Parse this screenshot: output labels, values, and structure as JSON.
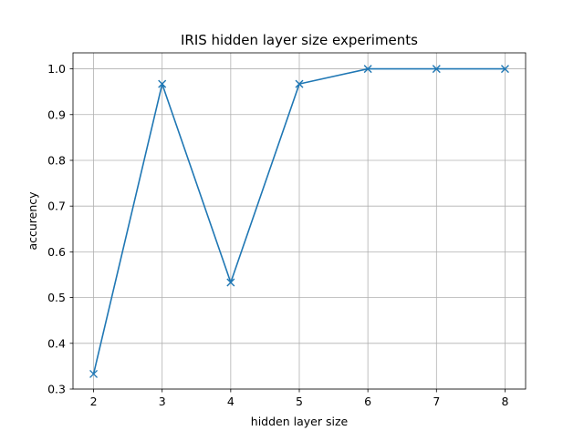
{
  "chart_data": {
    "type": "line",
    "title": "IRIS hidden layer size experiments",
    "xlabel": "hidden layer size",
    "ylabel": "accurency",
    "x": [
      2,
      3,
      4,
      5,
      6,
      7,
      8
    ],
    "series": [
      {
        "values": [
          0.333,
          0.967,
          0.533,
          0.967,
          1.0,
          1.0,
          1.0
        ],
        "color": "#1f77b4",
        "marker": "x"
      }
    ],
    "xlim": [
      1.7,
      8.3
    ],
    "ylim": [
      0.3,
      1.035
    ],
    "xticks": [
      2,
      3,
      4,
      5,
      6,
      7,
      8
    ],
    "xtick_labels": [
      "2",
      "3",
      "4",
      "5",
      "6",
      "7",
      "8"
    ],
    "yticks": [
      0.3,
      0.4,
      0.5,
      0.6,
      0.7,
      0.8,
      0.9,
      1.0
    ],
    "ytick_labels": [
      "0.3",
      "0.4",
      "0.5",
      "0.6",
      "0.7",
      "0.8",
      "0.9",
      "1.0"
    ],
    "grid": true,
    "legend": false
  }
}
